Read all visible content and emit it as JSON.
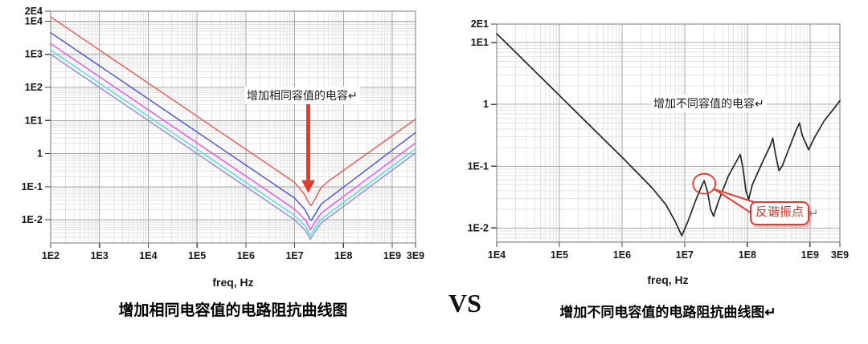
{
  "vs_label": "VS",
  "left": {
    "caption": "增加相同电容值的电路阻抗曲线图",
    "annotation": "增加相同容值的电容↵"
  },
  "right": {
    "caption": "增加不同电容值的电路阻抗曲线图↵",
    "annotation": "增加不同容值的电容↵",
    "callout": "反谐振点",
    "callout_return_mark": "↵"
  },
  "colors": {
    "annotation_red": "#e23b30",
    "grid_minor": "#e3e3e3",
    "grid_major": "#a8a8a8",
    "plot_border": "#7a7a7a",
    "tick_label": "#1a1a1a"
  },
  "chart_data": [
    {
      "type": "line",
      "title": "增加相同电容值的电路阻抗曲线图",
      "xlabel": "freq, Hz",
      "ylabel": "",
      "x_scale": "log",
      "y_scale": "log",
      "xlim": [
        100.0,
        3000000000.0
      ],
      "ylim": [
        0.002,
        20000.0
      ],
      "grid": true,
      "legend": "none",
      "x_ticks": [
        {
          "v": 100.0,
          "l": "1E2"
        },
        {
          "v": 1000.0,
          "l": "1E3"
        },
        {
          "v": 10000.0,
          "l": "1E4"
        },
        {
          "v": 100000.0,
          "l": "1E5"
        },
        {
          "v": 1000000.0,
          "l": "1E6"
        },
        {
          "v": 10000000.0,
          "l": "1E7"
        },
        {
          "v": 100000000.0,
          "l": "1E8"
        },
        {
          "v": 1000000000.0,
          "l": "1E9"
        },
        {
          "v": 3000000000.0,
          "l": "3E9"
        }
      ],
      "y_ticks": [
        {
          "v": 20000.0,
          "l": "2E4"
        },
        {
          "v": 10000.0,
          "l": "1E4"
        },
        {
          "v": 1000.0,
          "l": "1E3"
        },
        {
          "v": 100.0,
          "l": "1E2"
        },
        {
          "v": 10.0,
          "l": "1E1"
        },
        {
          "v": 1,
          "l": "1"
        },
        {
          "v": 0.1,
          "l": "1E-1"
        },
        {
          "v": 0.01,
          "l": "1E-2"
        }
      ],
      "series": [
        {
          "name": "series-1",
          "color": "#e8615a",
          "width": 1.5,
          "points": [
            [
              100.0,
              13500.0
            ],
            [
              10000000.0,
              0.135
            ],
            [
              16000000.0,
              0.058
            ],
            [
              20000000.0,
              0.03
            ],
            [
              22000000.0,
              0.027
            ],
            [
              26000000.0,
              0.042
            ],
            [
              35000000.0,
              0.095
            ],
            [
              50000000.0,
              0.15
            ],
            [
              3000000000.0,
              11
            ]
          ]
        },
        {
          "name": "series-2",
          "color": "#5456d8",
          "width": 1.5,
          "points": [
            [
              100.0,
              4500.0
            ],
            [
              10000000.0,
              0.045
            ],
            [
              16000000.0,
              0.021
            ],
            [
              20500000.0,
              0.0105
            ],
            [
              22000000.0,
              0.0097
            ],
            [
              25000000.0,
              0.013
            ],
            [
              35000000.0,
              0.03
            ],
            [
              3000000000.0,
              4.3
            ]
          ]
        },
        {
          "name": "series-3",
          "color": "#ea57ea",
          "width": 1.5,
          "points": [
            [
              100.0,
              2100.0
            ],
            [
              10000000.0,
              0.021
            ],
            [
              17000000.0,
              0.0095
            ],
            [
              21000000.0,
              0.005
            ],
            [
              24000000.0,
              0.007
            ],
            [
              35000000.0,
              0.016
            ],
            [
              3000000000.0,
              2.1
            ]
          ]
        },
        {
          "name": "series-4",
          "color": "#57dede",
          "width": 1.5,
          "points": [
            [
              100.0,
              1350.0
            ],
            [
              10000000.0,
              0.0135
            ],
            [
              17000000.0,
              0.0062
            ],
            [
              21000000.0,
              0.0033
            ],
            [
              24000000.0,
              0.0047
            ],
            [
              35000000.0,
              0.0105
            ],
            [
              3000000000.0,
              1.4
            ]
          ]
        },
        {
          "name": "series-5",
          "color": "#9a92cf",
          "width": 1.5,
          "points": [
            [
              100.0,
              1000.0
            ],
            [
              10000000.0,
              0.01
            ],
            [
              17000000.0,
              0.0046
            ],
            [
              21000000.0,
              0.0026
            ],
            [
              24000000.0,
              0.0036
            ],
            [
              35000000.0,
              0.008
            ],
            [
              3000000000.0,
              1.05
            ]
          ]
        }
      ],
      "annotations": [
        {
          "kind": "arrow-down",
          "x": 19000000.0,
          "from": 35,
          "to": 0.065,
          "color": "#e23b30"
        }
      ]
    },
    {
      "type": "line",
      "title": "增加不同电容值的电路阻抗曲线图",
      "xlabel": "freq, Hz",
      "ylabel": "",
      "x_scale": "log",
      "y_scale": "log",
      "xlim": [
        10000.0,
        3000000000.0
      ],
      "ylim": [
        0.0059,
        20.0
      ],
      "grid": true,
      "legend": "none",
      "x_ticks": [
        {
          "v": 10000.0,
          "l": "1E4"
        },
        {
          "v": 100000.0,
          "l": "1E5"
        },
        {
          "v": 1000000.0,
          "l": "1E6"
        },
        {
          "v": 10000000.0,
          "l": "1E7"
        },
        {
          "v": 100000000.0,
          "l": "1E8"
        },
        {
          "v": 1000000000.0,
          "l": "1E9"
        },
        {
          "v": 3000000000.0,
          "l": "3E9"
        }
      ],
      "y_ticks": [
        {
          "v": 20.0,
          "l": "2E1"
        },
        {
          "v": 10.0,
          "l": "1E1"
        },
        {
          "v": 1,
          "l": "1"
        },
        {
          "v": 0.1,
          "l": "1E-1"
        },
        {
          "v": 0.01,
          "l": "1E-2"
        }
      ],
      "series": [
        {
          "name": "series-1",
          "color": "#252525",
          "width": 1.7,
          "points": [
            [
              10000.0,
              14
            ],
            [
              100000.0,
              1.4
            ],
            [
              1000000.0,
              0.14
            ],
            [
              3000000.0,
              0.045
            ],
            [
              5000000.0,
              0.024
            ],
            [
              7000000.0,
              0.013
            ],
            [
              9000000.0,
              0.0075
            ],
            [
              11000000.0,
              0.012
            ],
            [
              15000000.0,
              0.028
            ],
            [
              19000000.0,
              0.05
            ],
            [
              20500000.0,
              0.058
            ],
            [
              23000000.0,
              0.04
            ],
            [
              26000000.0,
              0.02
            ],
            [
              29000000.0,
              0.0155
            ],
            [
              35000000.0,
              0.028
            ],
            [
              50000000.0,
              0.07
            ],
            [
              70000000.0,
              0.13
            ],
            [
              77000000.0,
              0.155
            ],
            [
              85000000.0,
              0.095
            ],
            [
              95000000.0,
              0.04
            ],
            [
              105000000.0,
              0.029
            ],
            [
              120000000.0,
              0.05
            ],
            [
              170000000.0,
              0.11
            ],
            [
              230000000.0,
              0.21
            ],
            [
              255000000.0,
              0.285
            ],
            [
              280000000.0,
              0.16
            ],
            [
              320000000.0,
              0.085
            ],
            [
              360000000.0,
              0.1
            ],
            [
              450000000.0,
              0.18
            ],
            [
              600000000.0,
              0.38
            ],
            [
              680000000.0,
              0.5
            ],
            [
              750000000.0,
              0.32
            ],
            [
              950000000.0,
              0.185
            ],
            [
              1200000000.0,
              0.3
            ],
            [
              1700000000.0,
              0.55
            ],
            [
              2400000000.0,
              0.85
            ],
            [
              3000000000.0,
              1.15
            ]
          ]
        }
      ],
      "annotations": [
        {
          "kind": "circle",
          "x": 20500000.0,
          "y": 0.052,
          "rx": 14,
          "ry": 12.5,
          "color": "#e23b30"
        }
      ]
    }
  ]
}
